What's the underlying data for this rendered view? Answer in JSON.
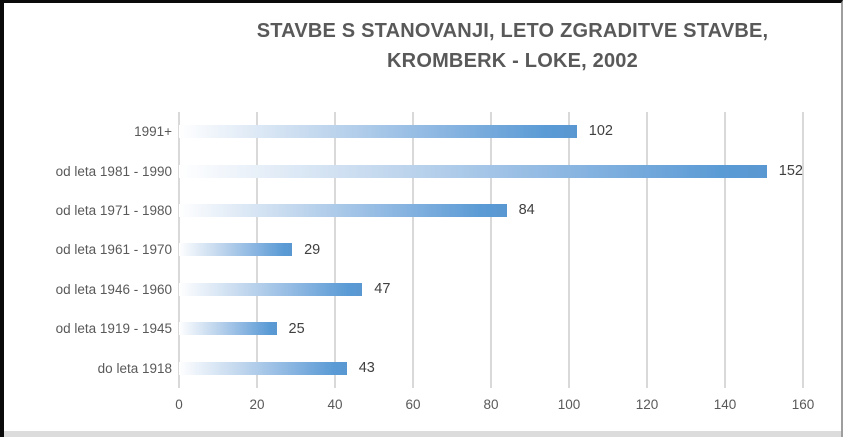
{
  "chart_data": {
    "type": "bar",
    "orientation": "horizontal",
    "title": "STAVBE S STANOVANJI, LETO ZGRADITVE STAVBE, KROMBERK - LOKE, 2002",
    "title_lines": [
      "STAVBE S STANOVANJI, LETO ZGRADITVE STAVBE,",
      "KROMBERK - LOKE, 2002"
    ],
    "categories": [
      "1991+",
      "od leta 1981 - 1990",
      "od leta 1971 - 1980",
      "od leta 1961 - 1970",
      "od leta 1946 - 1960",
      "od leta 1919 - 1945",
      "do leta 1918"
    ],
    "values": [
      102,
      152,
      84,
      29,
      47,
      25,
      43
    ],
    "xlabel": "",
    "ylabel": "",
    "xlim": [
      0,
      160
    ],
    "x_ticks": [
      0,
      20,
      40,
      60,
      80,
      100,
      120,
      140,
      160
    ],
    "grid": true,
    "legend": "none",
    "colors": {
      "bar_gradient_start": "#FFFFFF",
      "bar_gradient_end": "#5B9BD5",
      "gridline": "#D9D9D9",
      "title_text": "#595959",
      "axis_text": "#595959",
      "value_label_text": "#404040"
    }
  }
}
